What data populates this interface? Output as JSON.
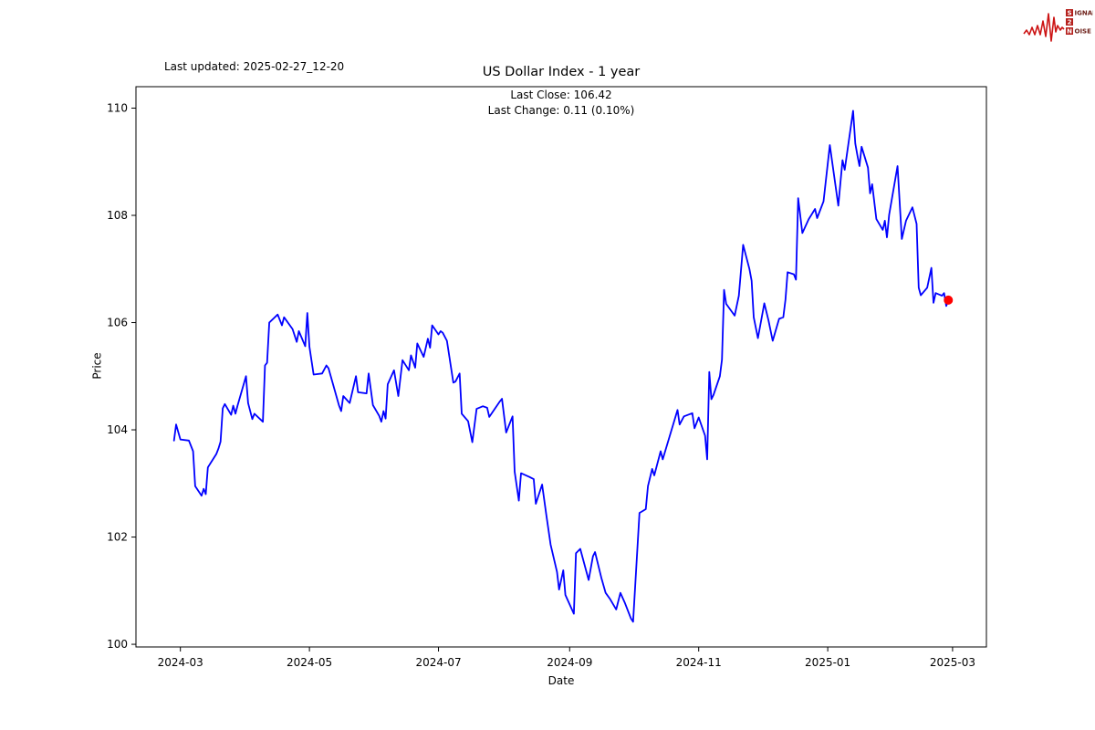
{
  "header": {
    "last_updated": "Last updated: 2025-02-27_12-20",
    "title": "US Dollar Index - 1 year"
  },
  "annotation": {
    "last_close_line": "Last Close: 106.42",
    "last_change_line": "Last Change: 0.11 (0.10%)"
  },
  "logo": {
    "letter1": "S",
    "word1": "IGNAL",
    "letter2": "2",
    "letter3": "N",
    "word3": "OISE",
    "waveform_color": "#cc1414",
    "box_color": "#b5211d",
    "text_color": "#6d2019"
  },
  "chart_data": {
    "type": "line",
    "title": "US Dollar Index - 1 year",
    "xlabel": "Date",
    "ylabel": "Price",
    "grid": false,
    "legend_position": "none",
    "line_color": "#0000ff",
    "last_point_color": "#ff0000",
    "axis_color": "#000000",
    "last_close": 106.42,
    "last_change": 0.11,
    "last_change_pct": "0.10%",
    "xlim": [
      "2024-02-09",
      "2025-03-17"
    ],
    "ylim": [
      99.95,
      110.4
    ],
    "y_ticks": [
      100,
      102,
      104,
      106,
      108,
      110
    ],
    "x_ticks": [
      {
        "date": "2024-03-01",
        "label": "2024-03"
      },
      {
        "date": "2024-05-01",
        "label": "2024-05"
      },
      {
        "date": "2024-07-01",
        "label": "2024-07"
      },
      {
        "date": "2024-09-01",
        "label": "2024-09"
      },
      {
        "date": "2024-11-01",
        "label": "2024-11"
      },
      {
        "date": "2025-01-01",
        "label": "2025-01"
      },
      {
        "date": "2025-03-01",
        "label": "2025-03"
      }
    ],
    "series": [
      {
        "name": "US Dollar Index",
        "points": [
          [
            "2024-02-27",
            103.8
          ],
          [
            "2024-02-28",
            104.1
          ],
          [
            "2024-03-01",
            103.82
          ],
          [
            "2024-03-05",
            103.8
          ],
          [
            "2024-03-07",
            103.6
          ],
          [
            "2024-03-08",
            102.95
          ],
          [
            "2024-03-11",
            102.77
          ],
          [
            "2024-03-12",
            102.9
          ],
          [
            "2024-03-13",
            102.8
          ],
          [
            "2024-03-14",
            103.3
          ],
          [
            "2024-03-18",
            103.55
          ],
          [
            "2024-03-19",
            103.65
          ],
          [
            "2024-03-20",
            103.78
          ],
          [
            "2024-03-21",
            104.4
          ],
          [
            "2024-03-22",
            104.48
          ],
          [
            "2024-03-25",
            104.28
          ],
          [
            "2024-03-26",
            104.45
          ],
          [
            "2024-03-27",
            104.3
          ],
          [
            "2024-03-28",
            104.45
          ],
          [
            "2024-04-01",
            105.0
          ],
          [
            "2024-04-02",
            104.5
          ],
          [
            "2024-04-04",
            104.2
          ],
          [
            "2024-04-05",
            104.3
          ],
          [
            "2024-04-09",
            104.15
          ],
          [
            "2024-04-10",
            105.2
          ],
          [
            "2024-04-11",
            105.25
          ],
          [
            "2024-04-12",
            106.0
          ],
          [
            "2024-04-16",
            106.15
          ],
          [
            "2024-04-18",
            105.95
          ],
          [
            "2024-04-19",
            106.1
          ],
          [
            "2024-04-23",
            105.88
          ],
          [
            "2024-04-25",
            105.64
          ],
          [
            "2024-04-26",
            105.84
          ],
          [
            "2024-04-29",
            105.56
          ],
          [
            "2024-04-30",
            106.18
          ],
          [
            "2024-05-01",
            105.55
          ],
          [
            "2024-05-03",
            105.03
          ],
          [
            "2024-05-07",
            105.05
          ],
          [
            "2024-05-09",
            105.2
          ],
          [
            "2024-05-10",
            105.15
          ],
          [
            "2024-05-15",
            104.45
          ],
          [
            "2024-05-16",
            104.35
          ],
          [
            "2024-05-17",
            104.63
          ],
          [
            "2024-05-20",
            104.5
          ],
          [
            "2024-05-23",
            105.0
          ],
          [
            "2024-05-24",
            104.7
          ],
          [
            "2024-05-28",
            104.68
          ],
          [
            "2024-05-29",
            105.05
          ],
          [
            "2024-05-31",
            104.46
          ],
          [
            "2024-06-03",
            104.26
          ],
          [
            "2024-06-04",
            104.15
          ],
          [
            "2024-06-05",
            104.35
          ],
          [
            "2024-06-06",
            104.21
          ],
          [
            "2024-06-07",
            104.85
          ],
          [
            "2024-06-10",
            105.11
          ],
          [
            "2024-06-12",
            104.63
          ],
          [
            "2024-06-14",
            105.3
          ],
          [
            "2024-06-17",
            105.11
          ],
          [
            "2024-06-18",
            105.39
          ],
          [
            "2024-06-20",
            105.16
          ],
          [
            "2024-06-21",
            105.61
          ],
          [
            "2024-06-24",
            105.36
          ],
          [
            "2024-06-26",
            105.7
          ],
          [
            "2024-06-27",
            105.53
          ],
          [
            "2024-06-28",
            105.95
          ],
          [
            "2024-07-01",
            105.78
          ],
          [
            "2024-07-02",
            105.84
          ],
          [
            "2024-07-03",
            105.81
          ],
          [
            "2024-07-05",
            105.66
          ],
          [
            "2024-07-08",
            104.88
          ],
          [
            "2024-07-09",
            104.9
          ],
          [
            "2024-07-11",
            105.05
          ],
          [
            "2024-07-12",
            104.3
          ],
          [
            "2024-07-15",
            104.16
          ],
          [
            "2024-07-17",
            103.77
          ],
          [
            "2024-07-19",
            104.39
          ],
          [
            "2024-07-22",
            104.44
          ],
          [
            "2024-07-24",
            104.41
          ],
          [
            "2024-07-25",
            104.24
          ],
          [
            "2024-07-30",
            104.53
          ],
          [
            "2024-07-31",
            104.58
          ],
          [
            "2024-08-02",
            103.95
          ],
          [
            "2024-08-05",
            104.25
          ],
          [
            "2024-08-06",
            103.22
          ],
          [
            "2024-08-08",
            102.68
          ],
          [
            "2024-08-09",
            103.19
          ],
          [
            "2024-08-13",
            103.12
          ],
          [
            "2024-08-15",
            103.08
          ],
          [
            "2024-08-16",
            102.62
          ],
          [
            "2024-08-19",
            102.98
          ],
          [
            "2024-08-21",
            102.4
          ],
          [
            "2024-08-23",
            101.86
          ],
          [
            "2024-08-26",
            101.35
          ],
          [
            "2024-08-27",
            101.02
          ],
          [
            "2024-08-29",
            101.38
          ],
          [
            "2024-08-30",
            100.92
          ],
          [
            "2024-09-03",
            100.57
          ],
          [
            "2024-09-04",
            101.7
          ],
          [
            "2024-09-06",
            101.78
          ],
          [
            "2024-09-10",
            101.2
          ],
          [
            "2024-09-12",
            101.64
          ],
          [
            "2024-09-13",
            101.72
          ],
          [
            "2024-09-16",
            101.24
          ],
          [
            "2024-09-18",
            100.96
          ],
          [
            "2024-09-20",
            100.85
          ],
          [
            "2024-09-23",
            100.65
          ],
          [
            "2024-09-25",
            100.96
          ],
          [
            "2024-09-27",
            100.78
          ],
          [
            "2024-09-30",
            100.48
          ],
          [
            "2024-10-01",
            100.42
          ],
          [
            "2024-10-04",
            102.45
          ],
          [
            "2024-10-07",
            102.52
          ],
          [
            "2024-10-08",
            102.95
          ],
          [
            "2024-10-10",
            103.27
          ],
          [
            "2024-10-11",
            103.15
          ],
          [
            "2024-10-14",
            103.6
          ],
          [
            "2024-10-15",
            103.45
          ],
          [
            "2024-10-22",
            104.37
          ],
          [
            "2024-10-23",
            104.1
          ],
          [
            "2024-10-25",
            104.25
          ],
          [
            "2024-10-29",
            104.31
          ],
          [
            "2024-10-30",
            104.03
          ],
          [
            "2024-11-01",
            104.23
          ],
          [
            "2024-11-04",
            103.89
          ],
          [
            "2024-11-05",
            103.45
          ],
          [
            "2024-11-06",
            105.08
          ],
          [
            "2024-11-07",
            104.57
          ],
          [
            "2024-11-08",
            104.65
          ],
          [
            "2024-11-11",
            105.0
          ],
          [
            "2024-11-12",
            105.31
          ],
          [
            "2024-11-13",
            106.61
          ],
          [
            "2024-11-14",
            106.35
          ],
          [
            "2024-11-18",
            106.13
          ],
          [
            "2024-11-20",
            106.5
          ],
          [
            "2024-11-22",
            107.45
          ],
          [
            "2024-11-25",
            107.0
          ],
          [
            "2024-11-26",
            106.78
          ],
          [
            "2024-11-27",
            106.1
          ],
          [
            "2024-11-29",
            105.71
          ],
          [
            "2024-12-02",
            106.36
          ],
          [
            "2024-12-04",
            106.04
          ],
          [
            "2024-12-06",
            105.66
          ],
          [
            "2024-12-09",
            106.07
          ],
          [
            "2024-12-11",
            106.1
          ],
          [
            "2024-12-12",
            106.43
          ],
          [
            "2024-12-13",
            106.94
          ],
          [
            "2024-12-16",
            106.9
          ],
          [
            "2024-12-17",
            106.8
          ],
          [
            "2024-12-18",
            108.32
          ],
          [
            "2024-12-20",
            107.67
          ],
          [
            "2024-12-23",
            107.93
          ],
          [
            "2024-12-26",
            108.12
          ],
          [
            "2024-12-27",
            107.95
          ],
          [
            "2024-12-30",
            108.26
          ],
          [
            "2025-01-02",
            109.31
          ],
          [
            "2025-01-06",
            108.18
          ],
          [
            "2025-01-08",
            109.03
          ],
          [
            "2025-01-09",
            108.85
          ],
          [
            "2025-01-13",
            109.95
          ],
          [
            "2025-01-14",
            109.34
          ],
          [
            "2025-01-15",
            109.12
          ],
          [
            "2025-01-16",
            108.92
          ],
          [
            "2025-01-17",
            109.28
          ],
          [
            "2025-01-20",
            108.89
          ],
          [
            "2025-01-21",
            108.41
          ],
          [
            "2025-01-22",
            108.58
          ],
          [
            "2025-01-24",
            107.93
          ],
          [
            "2025-01-27",
            107.73
          ],
          [
            "2025-01-28",
            107.9
          ],
          [
            "2025-01-29",
            107.59
          ],
          [
            "2025-01-30",
            108.01
          ],
          [
            "2025-02-03",
            108.92
          ],
          [
            "2025-02-05",
            107.56
          ],
          [
            "2025-02-07",
            107.9
          ],
          [
            "2025-02-10",
            108.15
          ],
          [
            "2025-02-12",
            107.84
          ],
          [
            "2025-02-13",
            106.65
          ],
          [
            "2025-02-14",
            106.51
          ],
          [
            "2025-02-17",
            106.65
          ],
          [
            "2025-02-19",
            107.02
          ],
          [
            "2025-02-20",
            106.37
          ],
          [
            "2025-02-21",
            106.55
          ],
          [
            "2025-02-24",
            106.5
          ],
          [
            "2025-02-25",
            106.55
          ],
          [
            "2025-02-26",
            106.31
          ],
          [
            "2025-02-27",
            106.42
          ]
        ]
      }
    ]
  }
}
